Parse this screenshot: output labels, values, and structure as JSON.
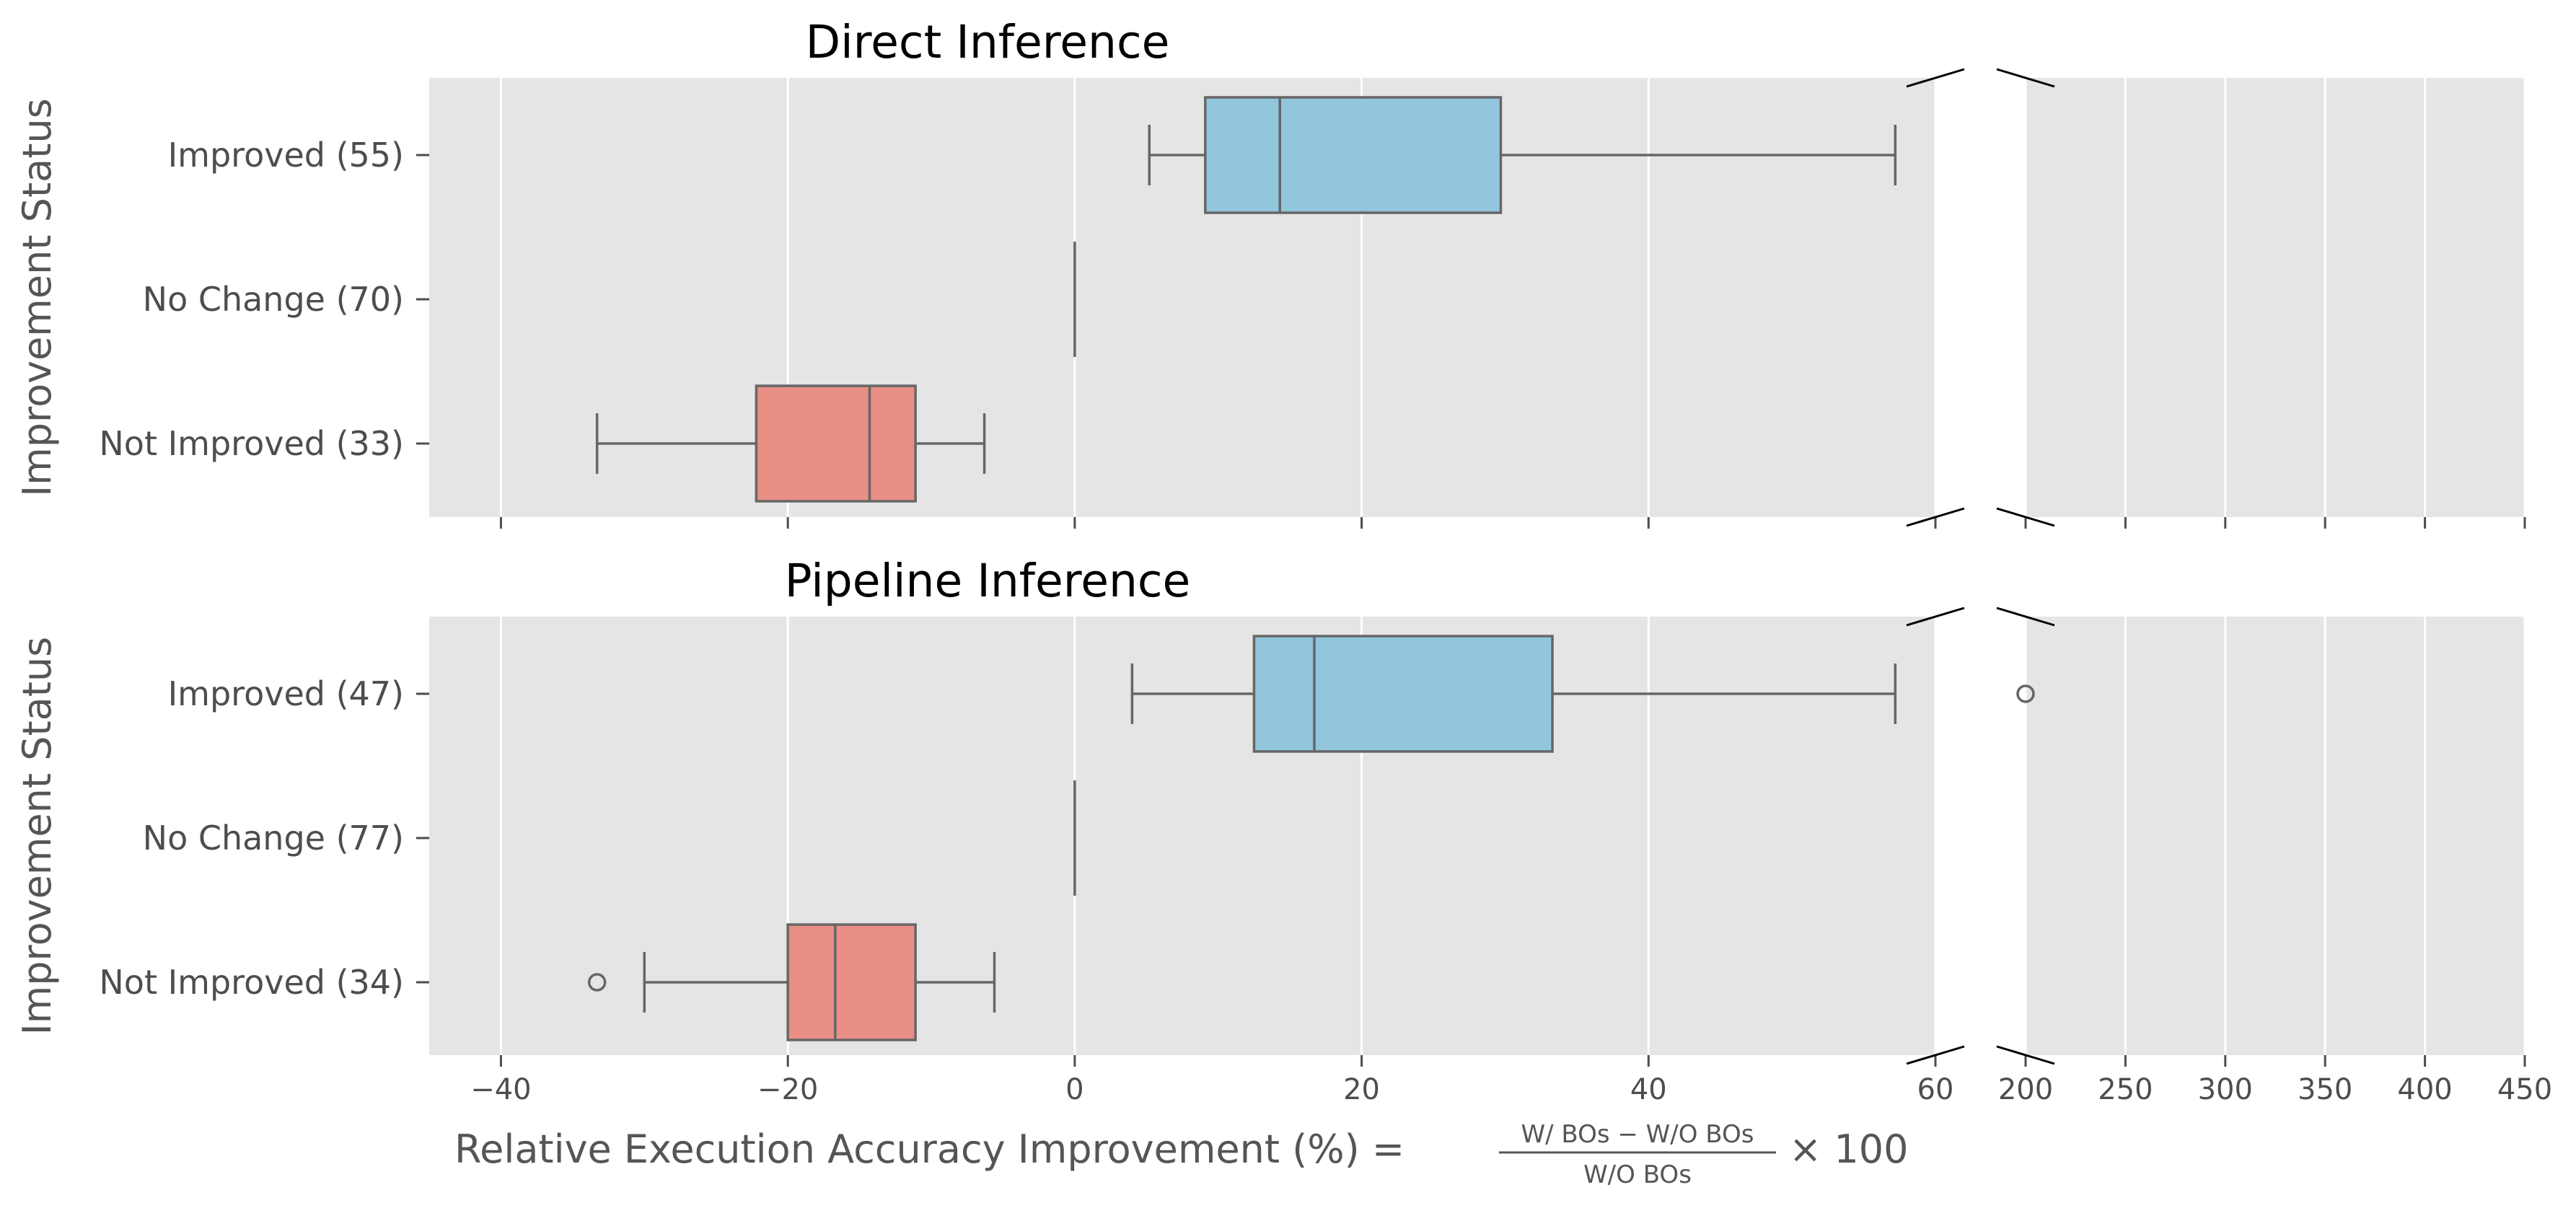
{
  "chart_data": {
    "type": "box",
    "orientation": "horizontal",
    "x_axis": {
      "label_prefix": "Relative Execution Accuracy Improvement (%) =",
      "label_numerator": "W/ BOs − W/O BOs",
      "label_denominator": "W/O BOs",
      "label_suffix": "× 100",
      "broken": true,
      "left_range": [
        -45,
        60
      ],
      "right_range": [
        200,
        450
      ],
      "left_ticks": [
        -40,
        -20,
        0,
        20,
        40,
        60
      ],
      "left_tick_labels": [
        "−40",
        "−20",
        "0",
        "20",
        "40",
        "60"
      ],
      "right_ticks": [
        200,
        250,
        300,
        350,
        400,
        450
      ],
      "right_tick_labels": [
        "200",
        "250",
        "300",
        "350",
        "400",
        "450"
      ]
    },
    "y_axis_label": "Improvement Status",
    "colors": {
      "improved": "#92c6dd",
      "not_improved": "#e98f85",
      "background": "#e5e5e5",
      "line": "#666666"
    },
    "panels": [
      {
        "title": "Direct Inference",
        "groups": [
          {
            "label": "Improved (55)",
            "kind": "improved",
            "whisker_low": 5.2,
            "q1": 9.1,
            "median": 14.3,
            "q3": 29.7,
            "whisker_high": 57.2,
            "outliers": []
          },
          {
            "label": "No Change (70)",
            "kind": "none",
            "whisker_low": 0,
            "q1": 0,
            "median": 0,
            "q3": 0,
            "whisker_high": 0,
            "outliers": []
          },
          {
            "label": "Not Improved (33)",
            "kind": "not_improved",
            "whisker_low": -33.3,
            "q1": -22.2,
            "median": -14.3,
            "q3": -11.1,
            "whisker_high": -6.3,
            "outliers": []
          }
        ]
      },
      {
        "title": "Pipeline Inference",
        "groups": [
          {
            "label": "Improved (47)",
            "kind": "improved",
            "whisker_low": 4.0,
            "q1": 12.5,
            "median": 16.7,
            "q3": 33.3,
            "whisker_high": 57.2,
            "outliers": [
              200
            ]
          },
          {
            "label": "No Change (77)",
            "kind": "none",
            "whisker_low": 0,
            "q1": 0,
            "median": 0,
            "q3": 0,
            "whisker_high": 0,
            "outliers": []
          },
          {
            "label": "Not Improved (34)",
            "kind": "not_improved",
            "whisker_low": -30.0,
            "q1": -20.0,
            "median": -16.7,
            "q3": -11.1,
            "whisker_high": -5.6,
            "outliers": [
              -33.3
            ]
          }
        ]
      }
    ]
  }
}
